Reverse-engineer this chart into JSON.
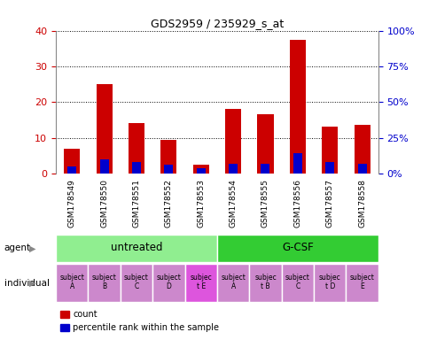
{
  "title": "GDS2959 / 235929_s_at",
  "samples": [
    "GSM178549",
    "GSM178550",
    "GSM178551",
    "GSM178552",
    "GSM178553",
    "GSM178554",
    "GSM178555",
    "GSM178556",
    "GSM178557",
    "GSM178558"
  ],
  "count_values": [
    7,
    25,
    14,
    9.5,
    2.5,
    18,
    16.5,
    37.5,
    13,
    13.5
  ],
  "percentile_values": [
    5,
    10,
    8,
    6,
    3.5,
    6.5,
    6.5,
    14,
    8,
    7
  ],
  "ylim_left": [
    0,
    40
  ],
  "ylim_right": [
    0,
    100
  ],
  "yticks_left": [
    0,
    10,
    20,
    30,
    40
  ],
  "yticks_right": [
    0,
    25,
    50,
    75,
    100
  ],
  "ytick_labels_right": [
    "0%",
    "25%",
    "50%",
    "75%",
    "100%"
  ],
  "count_color": "#cc0000",
  "percentile_color": "#0000cc",
  "agent_groups": [
    {
      "label": "untreated",
      "start": 0,
      "end": 4,
      "color": "#90ee90"
    },
    {
      "label": "G-CSF",
      "start": 5,
      "end": 9,
      "color": "#33cc33"
    }
  ],
  "individuals": [
    {
      "label": "subject\nA",
      "col": 0,
      "color": "#cc88cc"
    },
    {
      "label": "subject\nB",
      "col": 1,
      "color": "#cc88cc"
    },
    {
      "label": "subject\nC",
      "col": 2,
      "color": "#cc88cc"
    },
    {
      "label": "subject\nD",
      "col": 3,
      "color": "#cc88cc"
    },
    {
      "label": "subjec\nt E",
      "col": 4,
      "color": "#dd55dd"
    },
    {
      "label": "subject\nA",
      "col": 5,
      "color": "#cc88cc"
    },
    {
      "label": "subjec\nt B",
      "col": 6,
      "color": "#cc88cc"
    },
    {
      "label": "subject\nC",
      "col": 7,
      "color": "#cc88cc"
    },
    {
      "label": "subjec\nt D",
      "col": 8,
      "color": "#cc88cc"
    },
    {
      "label": "subject\nE",
      "col": 9,
      "color": "#cc88cc"
    }
  ],
  "sample_bg_color": "#d0d0d0",
  "background_color": "#ffffff",
  "plot_bg_color": "#ffffff",
  "tick_color_left": "#cc0000",
  "tick_color_right": "#0000cc",
  "legend_count_label": "count",
  "legend_percentile_label": "percentile rank within the sample"
}
